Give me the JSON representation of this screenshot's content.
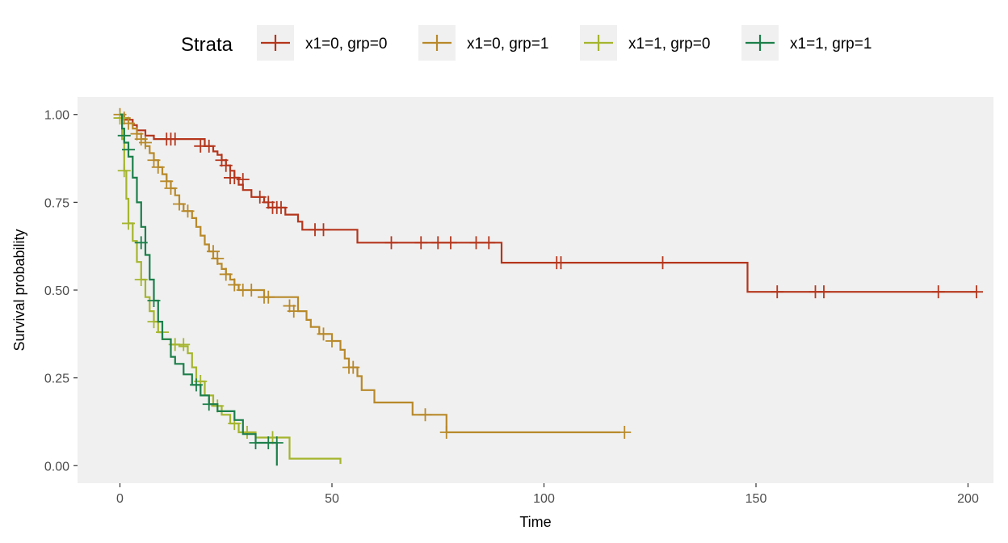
{
  "chart_data": {
    "type": "line",
    "subtype": "kaplan-meier step",
    "xlabel": "Time",
    "ylabel": "Survival probability",
    "xlim": [
      -10,
      206
    ],
    "ylim": [
      -0.05,
      1.05
    ],
    "x_ticks": [
      0,
      50,
      100,
      150,
      200
    ],
    "y_ticks": [
      0.0,
      0.25,
      0.5,
      0.75,
      1.0
    ],
    "x_tick_labels": [
      "0",
      "50",
      "100",
      "150",
      "200"
    ],
    "y_tick_labels": [
      "0.00",
      "0.25",
      "0.50",
      "0.75",
      "1.00"
    ],
    "grid": false,
    "background": "#f0f0f0",
    "legend": {
      "title": "Strata",
      "position": "top"
    },
    "series": [
      {
        "name": "x1=0, grp=0",
        "color": "#b5361c",
        "steps": [
          [
            0,
            1.0
          ],
          [
            1,
            0.985
          ],
          [
            3,
            0.97
          ],
          [
            4,
            0.955
          ],
          [
            6,
            0.94
          ],
          [
            8,
            0.93
          ],
          [
            20,
            0.91
          ],
          [
            22,
            0.895
          ],
          [
            23,
            0.885
          ],
          [
            24,
            0.87
          ],
          [
            25,
            0.855
          ],
          [
            26,
            0.84
          ],
          [
            27,
            0.82
          ],
          [
            28,
            0.8
          ],
          [
            29,
            0.785
          ],
          [
            31,
            0.765
          ],
          [
            34,
            0.75
          ],
          [
            35,
            0.735
          ],
          [
            39,
            0.715
          ],
          [
            42,
            0.695
          ],
          [
            43,
            0.672
          ],
          [
            56,
            0.635
          ],
          [
            90,
            0.578
          ],
          [
            148,
            0.495
          ],
          [
            202,
            0.495
          ]
        ],
        "censors": [
          [
            11,
            0.93
          ],
          [
            12,
            0.93
          ],
          [
            13,
            0.93
          ],
          [
            19,
            0.91
          ],
          [
            21,
            0.91
          ],
          [
            24,
            0.87
          ],
          [
            25,
            0.855
          ],
          [
            26,
            0.82
          ],
          [
            27,
            0.82
          ],
          [
            29,
            0.815
          ],
          [
            33,
            0.765
          ],
          [
            35,
            0.75
          ],
          [
            36,
            0.735
          ],
          [
            37,
            0.735
          ],
          [
            38,
            0.735
          ],
          [
            46,
            0.672
          ],
          [
            48,
            0.672
          ],
          [
            64,
            0.635
          ],
          [
            71,
            0.635
          ],
          [
            75,
            0.635
          ],
          [
            78,
            0.635
          ],
          [
            84,
            0.635
          ],
          [
            87,
            0.635
          ],
          [
            103,
            0.578
          ],
          [
            104,
            0.578
          ],
          [
            128,
            0.578
          ],
          [
            155,
            0.495
          ],
          [
            164,
            0.495
          ],
          [
            166,
            0.495
          ],
          [
            193,
            0.495
          ],
          [
            202,
            0.495
          ]
        ]
      },
      {
        "name": "x1=0, grp=1",
        "color": "#b8892a",
        "steps": [
          [
            0,
            1.0
          ],
          [
            1,
            0.99
          ],
          [
            2,
            0.975
          ],
          [
            3,
            0.96
          ],
          [
            4,
            0.945
          ],
          [
            5,
            0.93
          ],
          [
            6,
            0.91
          ],
          [
            7,
            0.89
          ],
          [
            8,
            0.87
          ],
          [
            9,
            0.85
          ],
          [
            10,
            0.83
          ],
          [
            11,
            0.81
          ],
          [
            12,
            0.79
          ],
          [
            13,
            0.77
          ],
          [
            14,
            0.745
          ],
          [
            15,
            0.725
          ],
          [
            17,
            0.705
          ],
          [
            18,
            0.68
          ],
          [
            19,
            0.655
          ],
          [
            20,
            0.63
          ],
          [
            21,
            0.61
          ],
          [
            22,
            0.59
          ],
          [
            23,
            0.575
          ],
          [
            24,
            0.56
          ],
          [
            25,
            0.545
          ],
          [
            26,
            0.53
          ],
          [
            27,
            0.515
          ],
          [
            28,
            0.5
          ],
          [
            34,
            0.48
          ],
          [
            42,
            0.44
          ],
          [
            44,
            0.415
          ],
          [
            45,
            0.395
          ],
          [
            47,
            0.375
          ],
          [
            50,
            0.355
          ],
          [
            52,
            0.33
          ],
          [
            53,
            0.305
          ],
          [
            54,
            0.28
          ],
          [
            56,
            0.255
          ],
          [
            57,
            0.215
          ],
          [
            60,
            0.18
          ],
          [
            69,
            0.145
          ],
          [
            77,
            0.095
          ],
          [
            118,
            0.095
          ]
        ],
        "censors": [
          [
            0,
            1.0
          ],
          [
            1,
            0.99
          ],
          [
            2,
            0.975
          ],
          [
            4,
            0.945
          ],
          [
            5,
            0.93
          ],
          [
            6,
            0.92
          ],
          [
            8,
            0.87
          ],
          [
            9,
            0.85
          ],
          [
            11,
            0.81
          ],
          [
            12,
            0.79
          ],
          [
            14,
            0.745
          ],
          [
            16,
            0.725
          ],
          [
            22,
            0.61
          ],
          [
            23,
            0.59
          ],
          [
            25,
            0.545
          ],
          [
            27,
            0.515
          ],
          [
            29,
            0.5
          ],
          [
            31,
            0.5
          ],
          [
            34,
            0.48
          ],
          [
            35,
            0.48
          ],
          [
            40,
            0.455
          ],
          [
            41,
            0.44
          ],
          [
            48,
            0.375
          ],
          [
            50,
            0.355
          ],
          [
            54,
            0.28
          ],
          [
            55,
            0.28
          ],
          [
            72,
            0.145
          ],
          [
            77,
            0.095
          ],
          [
            119,
            0.095
          ]
        ]
      },
      {
        "name": "x1=1, grp=0",
        "color": "#a5b52e",
        "steps": [
          [
            0,
            1.0
          ],
          [
            0.5,
            0.93
          ],
          [
            1,
            0.84
          ],
          [
            1.5,
            0.76
          ],
          [
            2,
            0.69
          ],
          [
            3,
            0.64
          ],
          [
            4,
            0.58
          ],
          [
            5,
            0.53
          ],
          [
            6,
            0.48
          ],
          [
            7,
            0.44
          ],
          [
            8,
            0.41
          ],
          [
            9,
            0.38
          ],
          [
            10,
            0.36
          ],
          [
            12,
            0.345
          ],
          [
            14,
            0.34
          ],
          [
            16,
            0.32
          ],
          [
            17,
            0.28
          ],
          [
            18,
            0.24
          ],
          [
            20,
            0.2
          ],
          [
            22,
            0.17
          ],
          [
            24,
            0.145
          ],
          [
            26,
            0.12
          ],
          [
            28,
            0.095
          ],
          [
            32,
            0.08
          ],
          [
            40,
            0.02
          ],
          [
            52,
            0.005
          ]
        ],
        "censors": [
          [
            0,
            0.99
          ],
          [
            1,
            0.84
          ],
          [
            2,
            0.69
          ],
          [
            5,
            0.53
          ],
          [
            8,
            0.41
          ],
          [
            10,
            0.38
          ],
          [
            13,
            0.345
          ],
          [
            15,
            0.345
          ],
          [
            19,
            0.24
          ],
          [
            23,
            0.17
          ],
          [
            27,
            0.12
          ],
          [
            30,
            0.095
          ],
          [
            36,
            0.08
          ]
        ]
      },
      {
        "name": "x1=1, grp=1",
        "color": "#1c7f4a",
        "steps": [
          [
            0,
            1.0
          ],
          [
            0.5,
            0.96
          ],
          [
            1,
            0.92
          ],
          [
            2,
            0.88
          ],
          [
            3,
            0.82
          ],
          [
            4,
            0.75
          ],
          [
            5,
            0.68
          ],
          [
            6,
            0.6
          ],
          [
            7,
            0.53
          ],
          [
            8,
            0.47
          ],
          [
            9,
            0.41
          ],
          [
            10,
            0.36
          ],
          [
            12,
            0.31
          ],
          [
            13,
            0.29
          ],
          [
            15,
            0.26
          ],
          [
            17,
            0.23
          ],
          [
            19,
            0.2
          ],
          [
            21,
            0.175
          ],
          [
            23,
            0.155
          ],
          [
            27,
            0.13
          ],
          [
            29,
            0.09
          ],
          [
            32,
            0.065
          ],
          [
            37,
            0.0
          ]
        ],
        "censors": [
          [
            1,
            0.94
          ],
          [
            2,
            0.9
          ],
          [
            5,
            0.635
          ],
          [
            8,
            0.47
          ],
          [
            18,
            0.23
          ],
          [
            21,
            0.175
          ],
          [
            32,
            0.065
          ],
          [
            35,
            0.065
          ],
          [
            37,
            0.065
          ]
        ]
      }
    ]
  }
}
